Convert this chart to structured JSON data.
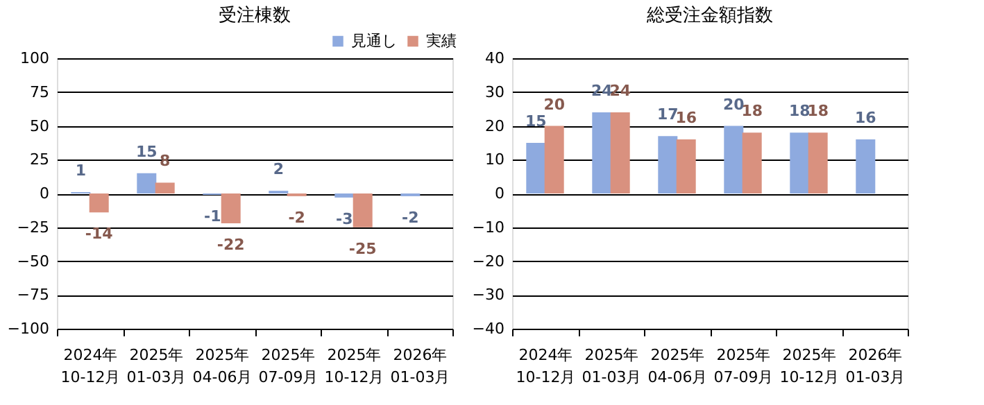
{
  "chart_data": [
    {
      "type": "bar",
      "title": "受注棟数",
      "categories": [
        "2024年 10-12月",
        "2025年 01-03月",
        "2025年 04-06月",
        "2025年 07-09月",
        "2025年 10-12月",
        "2026年 01-03月"
      ],
      "series": [
        {
          "name": "見通し",
          "color": "#8eaadf",
          "values": [
            1,
            15,
            -1,
            2,
            -3,
            -2
          ]
        },
        {
          "name": "実績",
          "color": "#d9917f",
          "values": [
            -14,
            8,
            -22,
            -2,
            -25,
            null
          ]
        }
      ],
      "ylim": [
        -100,
        100
      ],
      "yticks": [
        -100,
        -75,
        -50,
        -25,
        0,
        25,
        50,
        75,
        100
      ],
      "grid": "y",
      "legend": "top right",
      "data_labels": true
    },
    {
      "type": "bar",
      "title": "総受注金額指数",
      "categories": [
        "2024年 10-12月",
        "2025年 01-03月",
        "2025年 04-06月",
        "2025年 07-09月",
        "2025年 10-12月",
        "2026年 01-03月"
      ],
      "series": [
        {
          "name": "見通し",
          "color": "#8eaadf",
          "values": [
            15,
            24,
            17,
            20,
            18,
            16
          ]
        },
        {
          "name": "実績",
          "color": "#d9917f",
          "values": [
            20,
            24,
            16,
            18,
            18,
            null
          ]
        }
      ],
      "ylim": [
        -40,
        40
      ],
      "yticks": [
        -40,
        -30,
        -20,
        -10,
        0,
        10,
        20,
        30,
        40
      ],
      "grid": "y",
      "legend": "top right",
      "data_labels": true
    }
  ]
}
